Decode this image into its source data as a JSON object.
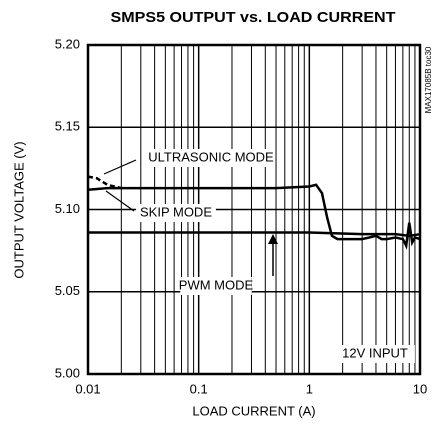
{
  "chart_data": {
    "type": "line",
    "title": "SMPS5 OUTPUT vs. LOAD CURRENT",
    "xlabel": "LOAD CURRENT (A)",
    "ylabel": "OUTPUT VOLTAGE (V)",
    "code": "MAX17085B toc30",
    "annotations": [
      "ULTRASONIC MODE",
      "SKIP MODE",
      "PWM MODE",
      "12V INPUT"
    ],
    "xscale": "log",
    "minor_grid": true,
    "grid": true,
    "xlim": [
      0.01,
      10
    ],
    "xticks": [
      0.01,
      0.1,
      1,
      10
    ],
    "ylim": [
      5.0,
      5.2
    ],
    "yticks": [
      {
        "value": 5.0,
        "label": "5.00"
      },
      5.05,
      {
        "value": 5.1,
        "label": "5.10"
      },
      5.15,
      {
        "value": 5.2,
        "label": "5.20"
      }
    ],
    "series": [
      {
        "color": "#000000",
        "dashed": true,
        "x": [
          0.01,
          0.012,
          0.015,
          0.02
        ],
        "values": [
          5.12,
          5.119,
          5.115,
          5.113
        ]
      },
      {
        "color": "#000000",
        "dashed": false,
        "x": [
          0.01,
          0.015,
          0.02,
          0.05,
          0.1,
          0.2,
          0.5,
          1,
          1.15,
          1.3,
          1.45,
          1.6,
          1.8,
          2,
          3,
          3.5,
          4,
          4.5,
          5,
          6,
          7,
          7.5,
          8,
          8.5,
          9,
          10
        ],
        "values": [
          5.112,
          5.113,
          5.113,
          5.113,
          5.113,
          5.113,
          5.113,
          5.114,
          5.115,
          5.11,
          5.095,
          5.084,
          5.082,
          5.082,
          5.082,
          5.083,
          5.084,
          5.082,
          5.082,
          5.083,
          5.082,
          5.078,
          5.092,
          5.08,
          5.083,
          5.082
        ]
      },
      {
        "color": "#000000",
        "dashed": false,
        "x": [
          0.01,
          0.1,
          1,
          3,
          6,
          8,
          10
        ],
        "values": [
          5.086,
          5.086,
          5.086,
          5.085,
          5.085,
          5.084,
          5.085
        ]
      }
    ]
  }
}
